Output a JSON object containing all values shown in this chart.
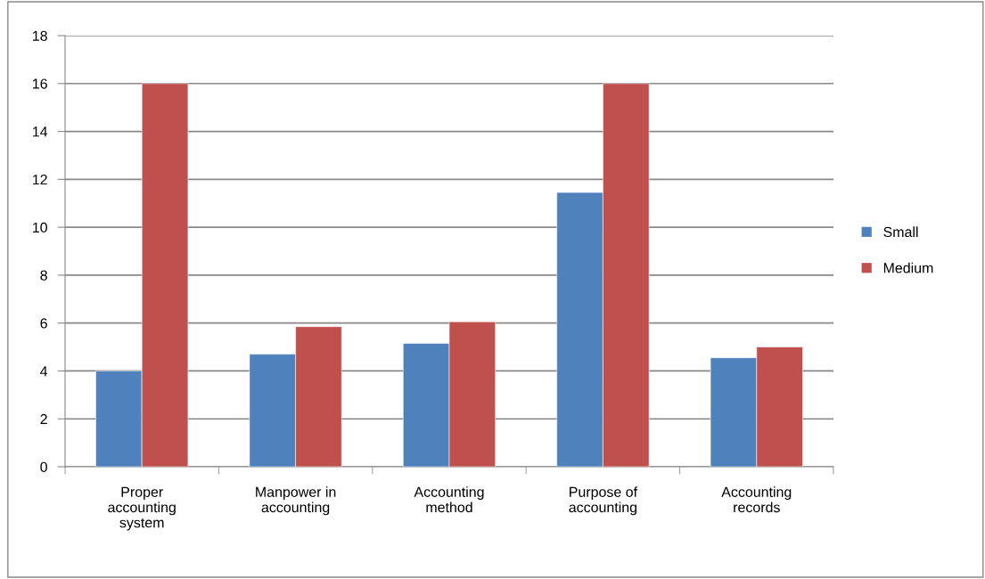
{
  "chart_data": {
    "type": "bar",
    "categories": [
      "Proper\naccounting\nsystem",
      "Manpower in\naccounting",
      "Accounting\nmethod",
      "Purpose of\naccounting",
      "Accounting\nrecords"
    ],
    "series": [
      {
        "name": "Small",
        "color": "#4f81bd",
        "values": [
          4,
          4.7,
          5.15,
          11.45,
          4.55
        ]
      },
      {
        "name": "Medium",
        "color": "#c0504d",
        "values": [
          16,
          5.85,
          6.05,
          16,
          5
        ]
      }
    ],
    "ylim": [
      0,
      18
    ],
    "yticks": [
      0,
      2,
      4,
      6,
      8,
      10,
      12,
      14,
      16,
      18
    ],
    "grid": "y",
    "legend": "right"
  }
}
